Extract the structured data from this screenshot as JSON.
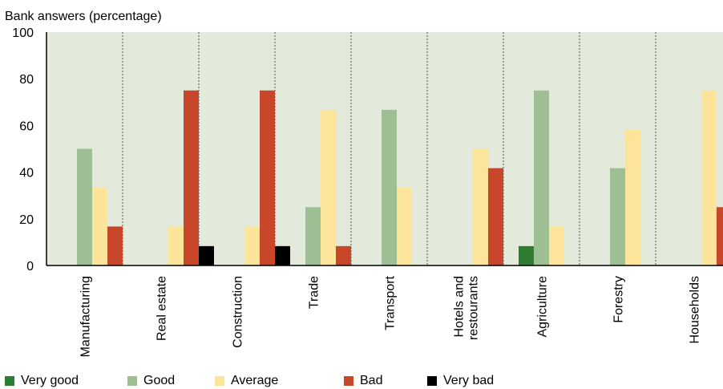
{
  "chart_data": {
    "type": "bar",
    "ylabel": "Bank answers (percentage)",
    "ylim": [
      0,
      100
    ],
    "yticks": [
      0,
      20,
      40,
      60,
      80,
      100
    ],
    "grid": false,
    "categories": [
      [
        "Manufacturing"
      ],
      [
        "Real estate"
      ],
      [
        "Construction"
      ],
      [
        "Trade"
      ],
      [
        "Transport"
      ],
      [
        "Hotels and",
        "restourants"
      ],
      [
        "Agriculture"
      ],
      [
        "Forestry"
      ],
      [
        "Households"
      ]
    ],
    "series": [
      {
        "name": "Very good",
        "color": "#2e7d32",
        "values": [
          0,
          0,
          0,
          0,
          0,
          0,
          8.3,
          0,
          0
        ]
      },
      {
        "name": "Good",
        "color": "#9dbf93",
        "values": [
          50,
          0,
          0,
          25,
          66.7,
          0,
          75,
          41.7,
          0
        ]
      },
      {
        "name": "Average",
        "color": "#fde49b",
        "values": [
          33.3,
          16.7,
          16.7,
          66.7,
          33.3,
          50,
          16.7,
          58.3,
          75
        ]
      },
      {
        "name": "Bad",
        "color": "#c8462a",
        "values": [
          16.7,
          75,
          75,
          8.3,
          0,
          41.7,
          0,
          0,
          25
        ]
      },
      {
        "name": "Very bad",
        "color": "#000000",
        "values": [
          0,
          8.3,
          8.3,
          0,
          0,
          0,
          0,
          0,
          0
        ]
      }
    ],
    "legend_position": "bottom",
    "plot_background": "#e3eadb"
  }
}
